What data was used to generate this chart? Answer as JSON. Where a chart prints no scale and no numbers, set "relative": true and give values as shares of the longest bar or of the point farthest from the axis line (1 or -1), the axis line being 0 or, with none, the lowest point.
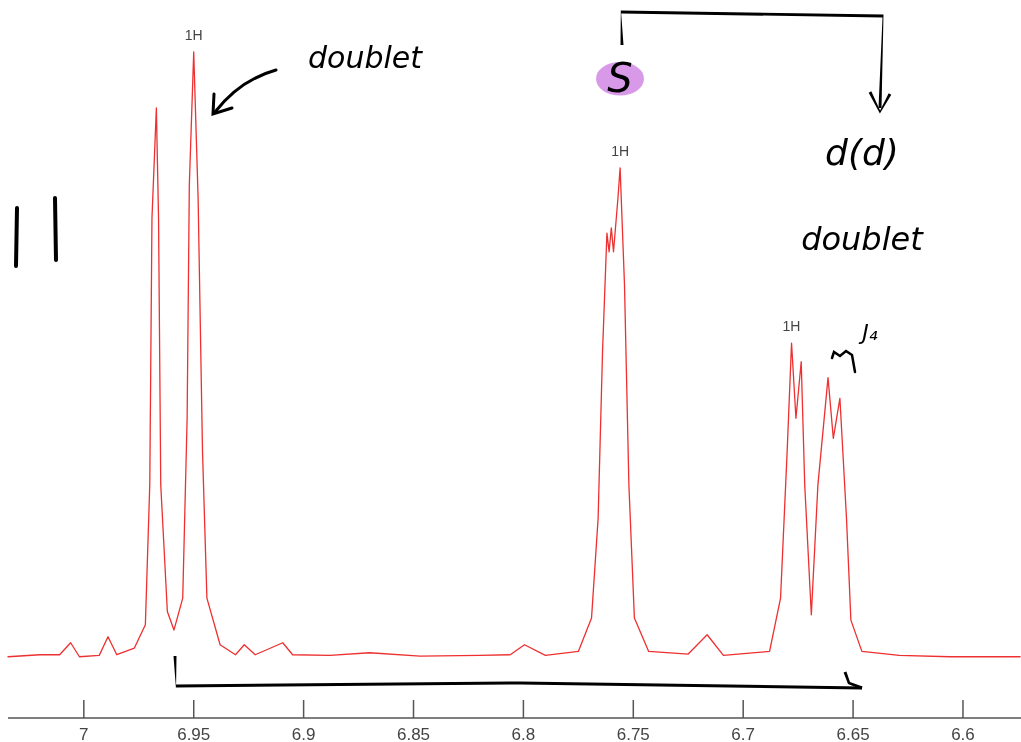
{
  "chart_data": {
    "type": "line",
    "relative": true,
    "xlim": [
      7.0345,
      6.5736
    ],
    "xticks": [
      7,
      6.95,
      6.9,
      6.85,
      6.8,
      6.75,
      6.7,
      6.65,
      6.6
    ],
    "grid": false,
    "marker": "none",
    "line_style": "solid",
    "series": [
      {
        "color": "#ee3030",
        "x": [
          7.0345,
          7.02,
          7.011,
          7.006,
          7.002,
          6.993,
          6.989,
          6.985,
          6.977,
          6.972,
          6.97,
          6.969,
          6.967,
          6.966,
          6.965,
          6.962,
          6.959,
          6.955,
          6.953,
          6.952,
          6.95,
          6.948,
          6.946,
          6.944,
          6.938,
          6.931,
          6.927,
          6.922,
          6.9095,
          6.905,
          6.888,
          6.87,
          6.847,
          6.82,
          6.806,
          6.7995,
          6.79,
          6.775,
          6.769,
          6.766,
          6.764,
          6.762,
          6.761,
          6.76,
          6.759,
          6.757,
          6.756,
          6.754,
          6.752,
          6.7495,
          6.743,
          6.725,
          6.7164,
          6.709,
          6.688,
          6.683,
          6.68,
          6.678,
          6.676,
          6.6736,
          6.672,
          6.669,
          6.666,
          6.6614,
          6.659,
          6.656,
          6.653,
          6.651,
          6.646,
          6.629,
          6.606,
          6.574
        ],
        "values": [
          0.092,
          0.095,
          0.095,
          0.113,
          0.092,
          0.094,
          0.122,
          0.095,
          0.105,
          0.14,
          0.35,
          0.75,
          0.916,
          0.75,
          0.35,
          0.16,
          0.132,
          0.18,
          0.45,
          0.8,
          1.0,
          0.78,
          0.4,
          0.18,
          0.11,
          0.095,
          0.11,
          0.095,
          0.113,
          0.095,
          0.094,
          0.098,
          0.093,
          0.094,
          0.095,
          0.11,
          0.094,
          0.1,
          0.15,
          0.3,
          0.55,
          0.728,
          0.7,
          0.736,
          0.7,
          0.78,
          0.826,
          0.65,
          0.35,
          0.15,
          0.1,
          0.096,
          0.125,
          0.094,
          0.1,
          0.18,
          0.4,
          0.563,
          0.45,
          0.535,
          0.35,
          0.155,
          0.35,
          0.511,
          0.42,
          0.48,
          0.3,
          0.147,
          0.1,
          0.094,
          0.092,
          0.092
        ]
      }
    ],
    "annotations": [
      {
        "text": "1H",
        "x": 6.95,
        "y": 1.0
      },
      {
        "text": "1H",
        "x": 6.756,
        "y": 0.826
      },
      {
        "text": "1H",
        "x": 6.678,
        "y": 0.563
      },
      "doublet",
      "S",
      "d(d)",
      "doublet",
      "J₄"
    ]
  }
}
